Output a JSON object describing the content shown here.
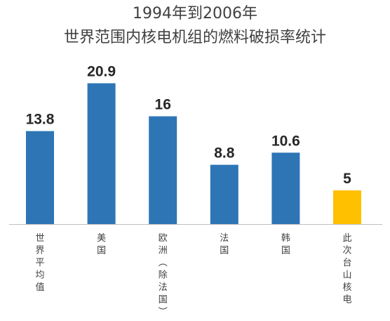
{
  "chart_data": {
    "type": "bar",
    "title": "1994年到2006年",
    "subtitle": "世界范围内核电机组的燃料破损率统计",
    "categories": [
      "世界平均值",
      "美国",
      "欧洲（除法国）",
      "法国",
      "韩国",
      "此次台山核电"
    ],
    "values": [
      13.8,
      20.9,
      16,
      8.8,
      10.6,
      5
    ],
    "value_labels": [
      "13.8",
      "20.9",
      "16",
      "8.8",
      "10.6",
      "5"
    ],
    "ylim": [
      0,
      22
    ],
    "grid": false,
    "legend": "none",
    "xlabel": "",
    "ylabel": "",
    "colors": {
      "default_bar": "#2E75B6",
      "highlight_bar": "#FFC000",
      "axis": "#BFBFBF"
    },
    "highlight_index": 5
  }
}
